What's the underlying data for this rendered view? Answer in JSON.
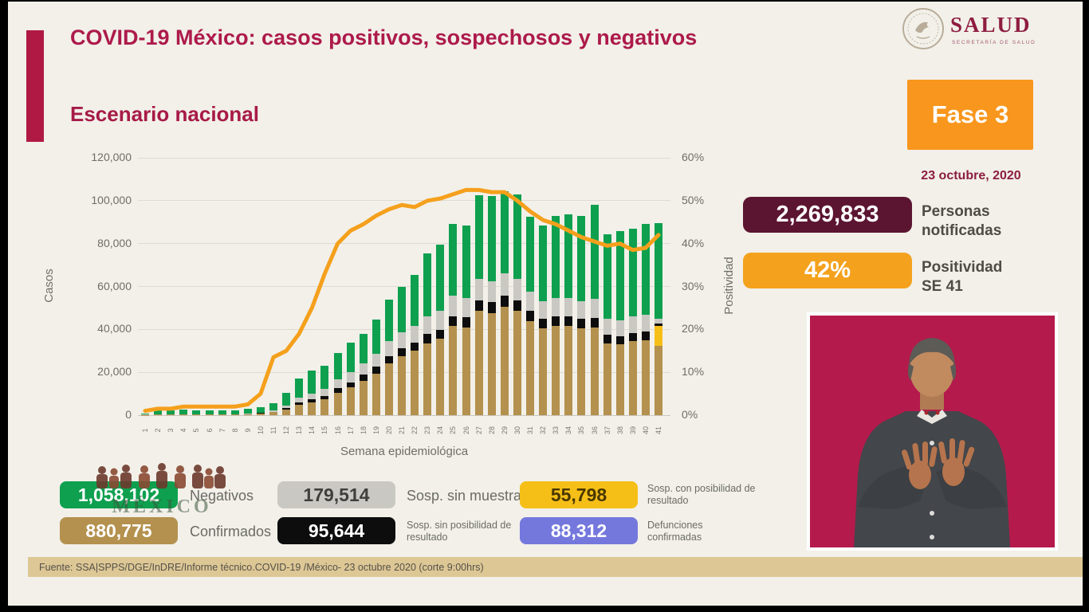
{
  "slide": {
    "title": "COVID-19 México: casos positivos, sospechosos y negativos",
    "subtitle": "Escenario nacional",
    "phase_label": "Fase 3",
    "date": "23 octubre, 2020",
    "footer": "Fuente: SSA|SPPS/DGE/InDRE/Informe técnico.COVID-19 /México- 23 octubre 2020 (corte 9:00hrs)"
  },
  "logo": {
    "name": "SALUD",
    "subtitle": "SECRETARÍA DE SALUD"
  },
  "stats": [
    {
      "value": "2,269,833",
      "label": "Personas notificadas"
    },
    {
      "value": "42%",
      "label": "Positividad SE 41"
    }
  ],
  "legend": [
    {
      "value": "1,058,102",
      "label": "Negativos"
    },
    {
      "value": "179,514",
      "label": "Sosp. sin muestra"
    },
    {
      "value": "55,798",
      "label": "Sosp. con posibilidad de resultado"
    },
    {
      "value": "880,775",
      "label": "Confirmados"
    },
    {
      "value": "95,644",
      "label": "Sosp. sin posibilidad de resultado"
    },
    {
      "value": "88,312",
      "label": "Defunciones confirmadas"
    }
  ],
  "watermark_text": "MÉXICO",
  "colors": {
    "accent": "#b01944",
    "title": "#ad1a4b",
    "phase_box": "#f8961d",
    "stat_maroon": "#5c1531",
    "stat_orange": "#f4a21d",
    "interpreter_bg": "#b51a4c",
    "negativos": "#0ea04f",
    "confirmados": "#b4914e",
    "sosp_sin_muestra": "#c9c8c3",
    "sosp_sin_posibilidad": "#0d0d0d",
    "sosp_con_posibilidad": "#f6bf17",
    "defunciones": "#7478dd",
    "positividad_line": "#f5a01c",
    "footer_bg": "#ddc795"
  },
  "chart_data": {
    "type": "bar",
    "subtype": "stacked-bars-with-line",
    "title": "Escenario nacional",
    "xlabel": "Semana epidemiológica",
    "ylabel_left": "Casos",
    "ylabel_right": "Positividad",
    "ylim_left": [
      0,
      120000
    ],
    "ylim_right": [
      0,
      60
    ],
    "yticks_left": [
      "0",
      "20,000",
      "40,000",
      "60,000",
      "80,000",
      "100,000",
      "120,000"
    ],
    "yticks_right": [
      "0%",
      "10%",
      "20%",
      "30%",
      "40%",
      "50%",
      "60%"
    ],
    "grid": true,
    "weeks": [
      1,
      2,
      3,
      4,
      5,
      6,
      7,
      8,
      9,
      10,
      11,
      12,
      13,
      14,
      15,
      16,
      17,
      18,
      19,
      20,
      21,
      22,
      23,
      24,
      25,
      26,
      27,
      28,
      29,
      30,
      31,
      32,
      33,
      34,
      35,
      36,
      37,
      38,
      39,
      40,
      41
    ],
    "series": [
      {
        "name": "Confirmados",
        "color": "#b4914e",
        "values": [
          100,
          200,
          200,
          250,
          250,
          250,
          250,
          250,
          400,
          800,
          1400,
          2700,
          4800,
          6000,
          7500,
          10500,
          13000,
          16000,
          19500,
          24000,
          27500,
          30000,
          33500,
          35500,
          41500,
          41000,
          48500,
          47500,
          50500,
          48500,
          44000,
          40500,
          41500,
          41500,
          40500,
          41000,
          33500,
          33000,
          34500,
          35000,
          32500
        ]
      },
      {
        "name": "Sosp. con posibilidad de resultado",
        "color": "#f6bf17",
        "values": [
          0,
          0,
          0,
          0,
          0,
          0,
          0,
          0,
          0,
          0,
          0,
          0,
          0,
          0,
          0,
          0,
          0,
          0,
          0,
          0,
          0,
          0,
          0,
          0,
          0,
          0,
          0,
          0,
          0,
          0,
          0,
          0,
          0,
          0,
          0,
          0,
          0,
          0,
          0,
          0,
          9000
        ]
      },
      {
        "name": "Sosp. sin posibilidad de resultado",
        "color": "#0d0d0d",
        "values": [
          0,
          0,
          0,
          0,
          0,
          0,
          0,
          0,
          100,
          150,
          250,
          600,
          1100,
          1400,
          1600,
          2100,
          2400,
          2900,
          3100,
          3600,
          3700,
          3900,
          4300,
          4400,
          4700,
          4600,
          5100,
          5100,
          5300,
          5100,
          4600,
          4300,
          4400,
          4400,
          4300,
          4400,
          3900,
          3800,
          3900,
          4000,
          1300
        ]
      },
      {
        "name": "Sosp. sin muestra",
        "color": "#c9c8c3",
        "values": [
          100,
          150,
          150,
          150,
          150,
          150,
          150,
          150,
          250,
          350,
          550,
          1300,
          2200,
          2700,
          3000,
          4000,
          4700,
          5200,
          6000,
          7000,
          7400,
          7700,
          8300,
          8700,
          9400,
          9000,
          10000,
          10000,
          10300,
          10000,
          9000,
          8300,
          8700,
          8700,
          8500,
          8700,
          7500,
          7300,
          7500,
          7700,
          2300
        ]
      },
      {
        "name": "Negativos",
        "color": "#0ea04f",
        "values": [
          600,
          1950,
          1950,
          2100,
          2000,
          1900,
          1900,
          1900,
          2050,
          2500,
          3300,
          5900,
          8900,
          10900,
          10900,
          12400,
          13900,
          13900,
          15900,
          19400,
          21400,
          23900,
          29400,
          30900,
          33400,
          33900,
          38900,
          39400,
          38400,
          39400,
          34900,
          35400,
          38400,
          38900,
          39700,
          43900,
          39600,
          41900,
          41100,
          42300,
          44400
        ]
      }
    ],
    "line": {
      "name": "Positividad",
      "color": "#f5a01c",
      "axis": "right",
      "values": [
        1,
        1.5,
        1.5,
        2,
        2,
        2,
        2,
        2,
        2.5,
        5,
        13.5,
        15,
        19,
        25,
        33,
        40,
        43,
        44.5,
        46.5,
        48,
        49,
        48.5,
        50,
        50.5,
        51.5,
        52.5,
        52.5,
        52,
        52,
        50,
        47.5,
        45.5,
        44.5,
        43,
        41.5,
        40.5,
        39.5,
        40,
        38.5,
        39,
        42
      ]
    }
  }
}
